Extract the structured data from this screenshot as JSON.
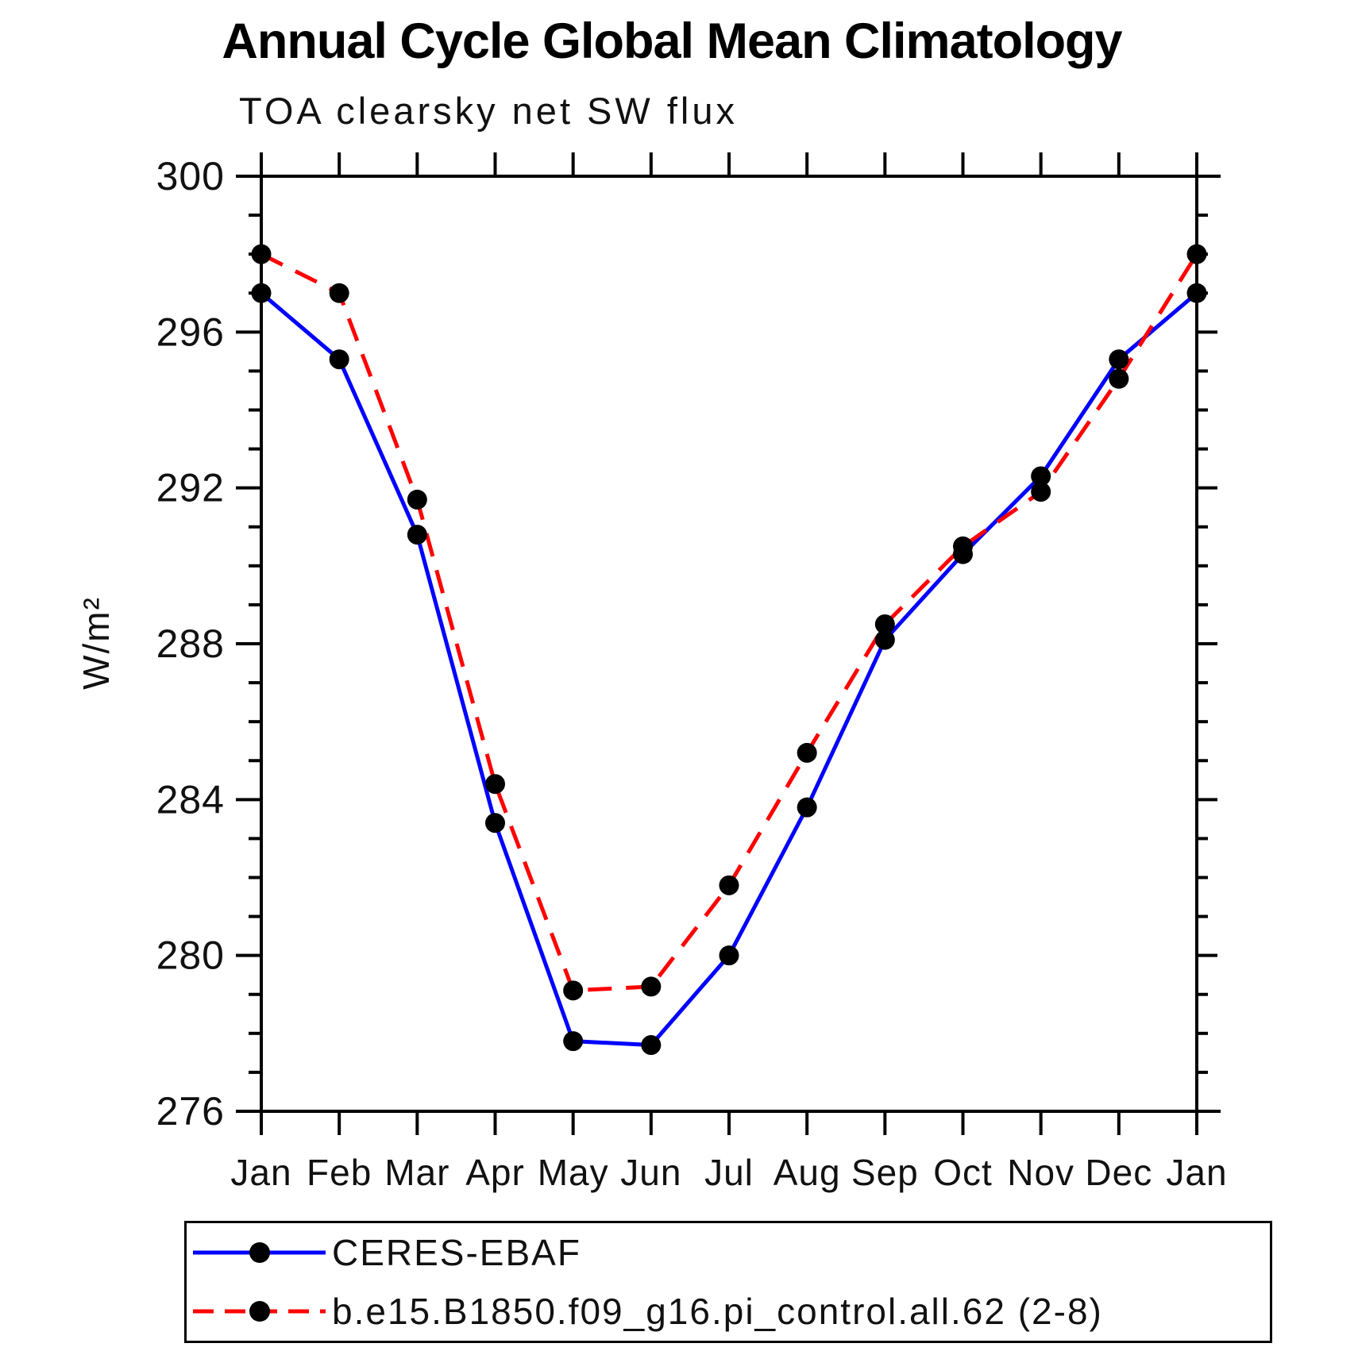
{
  "header": {
    "title": "Annual Cycle Global Mean Climatology",
    "subtitle": "TOA clearsky net SW flux"
  },
  "chart_data": {
    "type": "line",
    "title": "Annual Cycle Global Mean Climatology",
    "subtitle": "TOA clearsky net SW flux",
    "xlabel": "",
    "ylabel": "W/m²",
    "categories": [
      "Jan",
      "Feb",
      "Mar",
      "Apr",
      "May",
      "Jun",
      "Jul",
      "Aug",
      "Sep",
      "Oct",
      "Nov",
      "Dec",
      "Jan"
    ],
    "series": [
      {
        "name": "CERES-EBAF",
        "color": "#0000ff",
        "line_style": "solid",
        "marker": "circle",
        "marker_color": "#000000",
        "values": [
          297.0,
          295.3,
          290.8,
          283.4,
          277.8,
          277.7,
          280.0,
          283.8,
          288.1,
          290.3,
          292.3,
          295.3,
          297.0
        ]
      },
      {
        "name": "b.e15.B1850.f09_g16.pi_control.all.62 (2-8)",
        "color": "#ff0000",
        "line_style": "dashed",
        "marker": "circle",
        "marker_color": "#000000",
        "values": [
          298.0,
          297.0,
          291.7,
          284.4,
          279.1,
          279.2,
          281.8,
          285.2,
          288.5,
          290.5,
          291.9,
          294.8,
          298.0
        ]
      }
    ],
    "ylim": [
      276,
      300
    ],
    "yticks_major": [
      276,
      280,
      284,
      288,
      292,
      296,
      300
    ],
    "ytick_minor_step": 1,
    "grid": false,
    "frame": "box-with-outward-ticks",
    "legend_position": "bottom",
    "axis_color": "#000000",
    "text_color": "#111111"
  }
}
